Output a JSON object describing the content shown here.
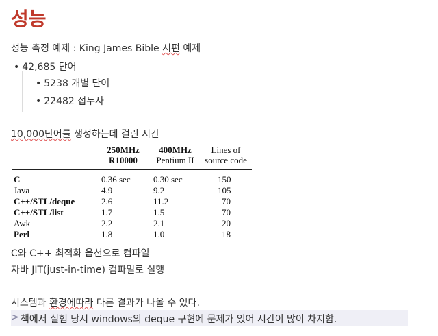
{
  "title": "성능",
  "intro": {
    "prefix": "성능 측정 예제 : King James Bible ",
    "underlined": "시편",
    "suffix": " 예제"
  },
  "bullets": [
    {
      "text": "42,685 단어",
      "level": 1
    },
    {
      "text": "5238 개별 단어",
      "level": 2
    },
    {
      "text": "22482 접두사",
      "level": 2
    }
  ],
  "generate_line": {
    "underlined": "10,000단어를",
    "rest": " 생성하는데 걸린 시간"
  },
  "table": {
    "headers": [
      {
        "line1": "250MHz",
        "line2": "R10000"
      },
      {
        "line1": "400MHz",
        "line2": "Pentium II"
      },
      {
        "line1": "Lines of",
        "line2": "source code"
      }
    ],
    "rows": [
      {
        "lang": "C",
        "c1": "0.36 sec",
        "c2": "0.30 sec",
        "c3": "150"
      },
      {
        "lang": "Java",
        "c1": "4.9",
        "c2": "9.2",
        "c3": "105"
      },
      {
        "lang": "C++/STL/deque",
        "c1": "2.6",
        "c2": "11.2",
        "c3": "70"
      },
      {
        "lang": "C++/STL/list",
        "c1": "1.7",
        "c2": "1.5",
        "c3": "70"
      },
      {
        "lang": "Awk",
        "c1": "2.2",
        "c2": "2.1",
        "c3": "20"
      },
      {
        "lang": "Perl",
        "c1": "1.8",
        "c2": "1.0",
        "c3": "18"
      }
    ]
  },
  "notes": [
    "C와 C++ 최적화 옵션으로 컴파일",
    "자바 JIT(just-in-time) 컴파일로 실행"
  ],
  "conclusion": {
    "prefix": "시스템과 ",
    "underlined": "환경에따라",
    "suffix": " 다른 결과가 나올 수 있다."
  },
  "quote": {
    "marker": ">",
    "text": "책에서 실험 당시 windows의 deque 구현에 문제가 있어 시간이 많이 차지함."
  },
  "colors": {
    "title": "#c0392b",
    "quote_bg": "#efeff6",
    "squiggle": "#e05555"
  }
}
